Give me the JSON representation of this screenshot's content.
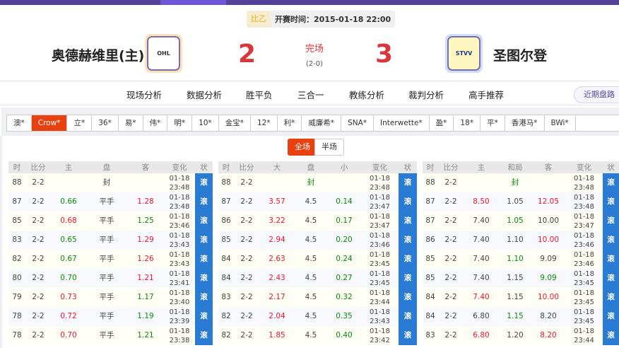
{
  "header": {
    "league": "比乙",
    "kickoff": "开赛时间：2015-01-18 22:00",
    "home": "奥德赫维里(主)",
    "away": "圣图尔登",
    "home_score": "2",
    "away_score": "3",
    "status": "完场",
    "half_score": "(2-0)",
    "home_logo_text": "OHL",
    "away_logo_text": "STVV"
  },
  "colors": {
    "accent": "#e8410f",
    "purple": "#52409a",
    "status_blue": "#2a7bd4",
    "up": "#f0142e",
    "down": "#0a8a0a"
  },
  "nav": {
    "items": [
      "现场分析",
      "数据分析",
      "胜平负",
      "三合一",
      "教练分析",
      "裁判分析",
      "高手推荐"
    ],
    "recent": "近期盘路"
  },
  "bookmakers": {
    "items": [
      "澳*",
      "Crow*",
      "立*",
      "36*",
      "易*",
      "伟*",
      "明*",
      "10*",
      "金宝*",
      "12*",
      "利*",
      "威廉希*",
      "SNA*",
      "Interwette*",
      "盈*",
      "18*",
      "平*",
      "香港马*",
      "BWi*"
    ],
    "active": "Crow*"
  },
  "toggle": {
    "full": "全场",
    "half": "半场",
    "active": "全场"
  },
  "tables": [
    {
      "headers": [
        "时",
        "比分",
        "主",
        "盘",
        "客",
        "变化",
        "状"
      ],
      "rows": [
        [
          "88",
          "2-2",
          "",
          "封:n",
          "",
          "01-18 23:48",
          "滚"
        ],
        [
          "87",
          "2-2",
          "0.66:g",
          "平手",
          "1.28:r",
          "01-18 23:48",
          "滚"
        ],
        [
          "85",
          "2-2",
          "0.68:r",
          "平手",
          "1.25:g",
          "01-18 23:46",
          "滚"
        ],
        [
          "83",
          "2-2",
          "0.65:g",
          "平手",
          "1.29:r",
          "01-18 23:43",
          "滚"
        ],
        [
          "82",
          "2-2",
          "0.67:g",
          "平手",
          "1.26:r",
          "01-18 23:43",
          "滚"
        ],
        [
          "80",
          "2-2",
          "0.70:g",
          "平手",
          "1.21:r",
          "01-18 23:41",
          "滚"
        ],
        [
          "79",
          "2-2",
          "0.73:r",
          "平手",
          "1.17:g",
          "01-18 23:40",
          "滚"
        ],
        [
          "78",
          "2-2",
          "0.72:r",
          "平手",
          "1.19:g",
          "01-18 23:39",
          "滚"
        ],
        [
          "78",
          "2-2",
          "0.70:r",
          "平手",
          "1.21:g",
          "01-18 23:38",
          "滚"
        ]
      ]
    },
    {
      "headers": [
        "时",
        "比分",
        "大",
        "盘",
        "小",
        "变化",
        "状"
      ],
      "rows": [
        [
          "88",
          "2-2",
          "",
          "封:g",
          "",
          "01-18 23:48",
          "滚"
        ],
        [
          "87",
          "2-2",
          "3.57:r",
          "4.5",
          "0.14:g",
          "01-18 23:47",
          "滚"
        ],
        [
          "86",
          "2-2",
          "3.22:r",
          "4.5",
          "0.17:g",
          "01-18 23:47",
          "滚"
        ],
        [
          "85",
          "2-2",
          "2.94:r",
          "4.5",
          "0.20:g",
          "01-18 23:46",
          "滚"
        ],
        [
          "84",
          "2-2",
          "2.63:r",
          "4.5",
          "0.24:g",
          "01-18 23:45",
          "滚"
        ],
        [
          "84",
          "2-2",
          "2.43:r",
          "4.5",
          "0.27:g",
          "01-18 23:45",
          "滚"
        ],
        [
          "83",
          "2-2",
          "2.17:r",
          "4.5",
          "0.32:g",
          "01-18 23:44",
          "滚"
        ],
        [
          "82",
          "2-2",
          "2.04:r",
          "4.5",
          "0.35:g",
          "01-18 23:43",
          "滚"
        ],
        [
          "82",
          "2-2",
          "1.85:r",
          "4.5",
          "0.40:g",
          "01-18 23:42",
          "滚"
        ]
      ]
    },
    {
      "headers": [
        "时",
        "比分",
        "主",
        "和局",
        "客",
        "变化",
        "状"
      ],
      "rows": [
        [
          "88",
          "2-2",
          "",
          "封:g",
          "",
          "01-18 23:48",
          "滚"
        ],
        [
          "87",
          "2-2",
          "8.50:r",
          "1.05",
          "12.05:r",
          "01-18 23:48",
          "滚"
        ],
        [
          "87",
          "2-2",
          "7.40",
          "1.05:g",
          "10.00",
          "01-18 23:47",
          "滚"
        ],
        [
          "86",
          "2-2",
          "7.40",
          "1.10",
          "10.00:r",
          "01-18 23:46",
          "滚"
        ],
        [
          "85",
          "2-2",
          "7.40",
          "1.10:g",
          "9.09",
          "01-18 23:46",
          "滚"
        ],
        [
          "85",
          "2-2",
          "7.40",
          "1.15",
          "9.09:g",
          "01-18 23:45",
          "滚"
        ],
        [
          "84",
          "2-2",
          "7.40:r",
          "1.15",
          "10.00:r",
          "01-18 23:45",
          "滚"
        ],
        [
          "84",
          "2-2",
          "6.80",
          "1.15:g",
          "8.20",
          "01-18 23:45",
          "滚"
        ],
        [
          "83",
          "2-2",
          "6.80:r",
          "1.20",
          "8.20:r",
          "01-18 23:44",
          "滚"
        ]
      ]
    }
  ]
}
